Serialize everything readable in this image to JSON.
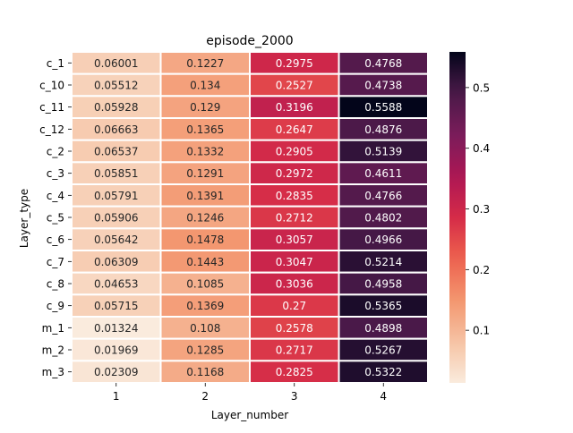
{
  "chart_data": {
    "type": "heatmap",
    "title": "episode_2000",
    "xlabel": "Layer_number",
    "ylabel": "Layer_type",
    "x_categories": [
      "1",
      "2",
      "3",
      "4"
    ],
    "y_categories": [
      "c_1",
      "c_10",
      "c_11",
      "c_12",
      "c_2",
      "c_3",
      "c_4",
      "c_5",
      "c_6",
      "c_7",
      "c_8",
      "c_9",
      "m_1",
      "m_2",
      "m_3"
    ],
    "values": [
      [
        0.06001,
        0.1227,
        0.2975,
        0.4768
      ],
      [
        0.05512,
        0.134,
        0.2527,
        0.4738
      ],
      [
        0.05928,
        0.129,
        0.3196,
        0.5588
      ],
      [
        0.06663,
        0.1365,
        0.2647,
        0.4876
      ],
      [
        0.06537,
        0.1332,
        0.2905,
        0.5139
      ],
      [
        0.05851,
        0.1291,
        0.2972,
        0.4611
      ],
      [
        0.05791,
        0.1391,
        0.2835,
        0.4766
      ],
      [
        0.05906,
        0.1246,
        0.2712,
        0.4802
      ],
      [
        0.05642,
        0.1478,
        0.3057,
        0.4966
      ],
      [
        0.06309,
        0.1443,
        0.3047,
        0.5214
      ],
      [
        0.04653,
        0.1085,
        0.3036,
        0.4958
      ],
      [
        0.05715,
        0.1369,
        0.27,
        0.5365
      ],
      [
        0.01324,
        0.108,
        0.2578,
        0.4898
      ],
      [
        0.01969,
        0.1285,
        0.2717,
        0.5267
      ],
      [
        0.02309,
        0.1168,
        0.2825,
        0.5322
      ]
    ],
    "labels": [
      [
        "0.06001",
        "0.1227",
        "0.2975",
        "0.4768"
      ],
      [
        "0.05512",
        "0.134",
        "0.2527",
        "0.4738"
      ],
      [
        "0.05928",
        "0.129",
        "0.3196",
        "0.5588"
      ],
      [
        "0.06663",
        "0.1365",
        "0.2647",
        "0.4876"
      ],
      [
        "0.06537",
        "0.1332",
        "0.2905",
        "0.5139"
      ],
      [
        "0.05851",
        "0.1291",
        "0.2972",
        "0.4611"
      ],
      [
        "0.05791",
        "0.1391",
        "0.2835",
        "0.4766"
      ],
      [
        "0.05906",
        "0.1246",
        "0.2712",
        "0.4802"
      ],
      [
        "0.05642",
        "0.1478",
        "0.3057",
        "0.4966"
      ],
      [
        "0.06309",
        "0.1443",
        "0.3047",
        "0.5214"
      ],
      [
        "0.04653",
        "0.1085",
        "0.3036",
        "0.4958"
      ],
      [
        "0.05715",
        "0.1369",
        "0.27",
        "0.5365"
      ],
      [
        "0.01324",
        "0.108",
        "0.2578",
        "0.4898"
      ],
      [
        "0.01969",
        "0.1285",
        "0.2717",
        "0.5267"
      ],
      [
        "0.02309",
        "0.1168",
        "0.2825",
        "0.5322"
      ]
    ],
    "colormap": "rocket_r",
    "color_range": [
      0.01324,
      0.5588
    ],
    "colorbar_ticks": [
      "0.1",
      "0.2",
      "0.3",
      "0.4",
      "0.5"
    ],
    "colorbar_tick_values": [
      0.1,
      0.2,
      0.3,
      0.4,
      0.5
    ],
    "cell_border_color": "#ffffff",
    "grid": false,
    "legend": "colorbar-right"
  }
}
